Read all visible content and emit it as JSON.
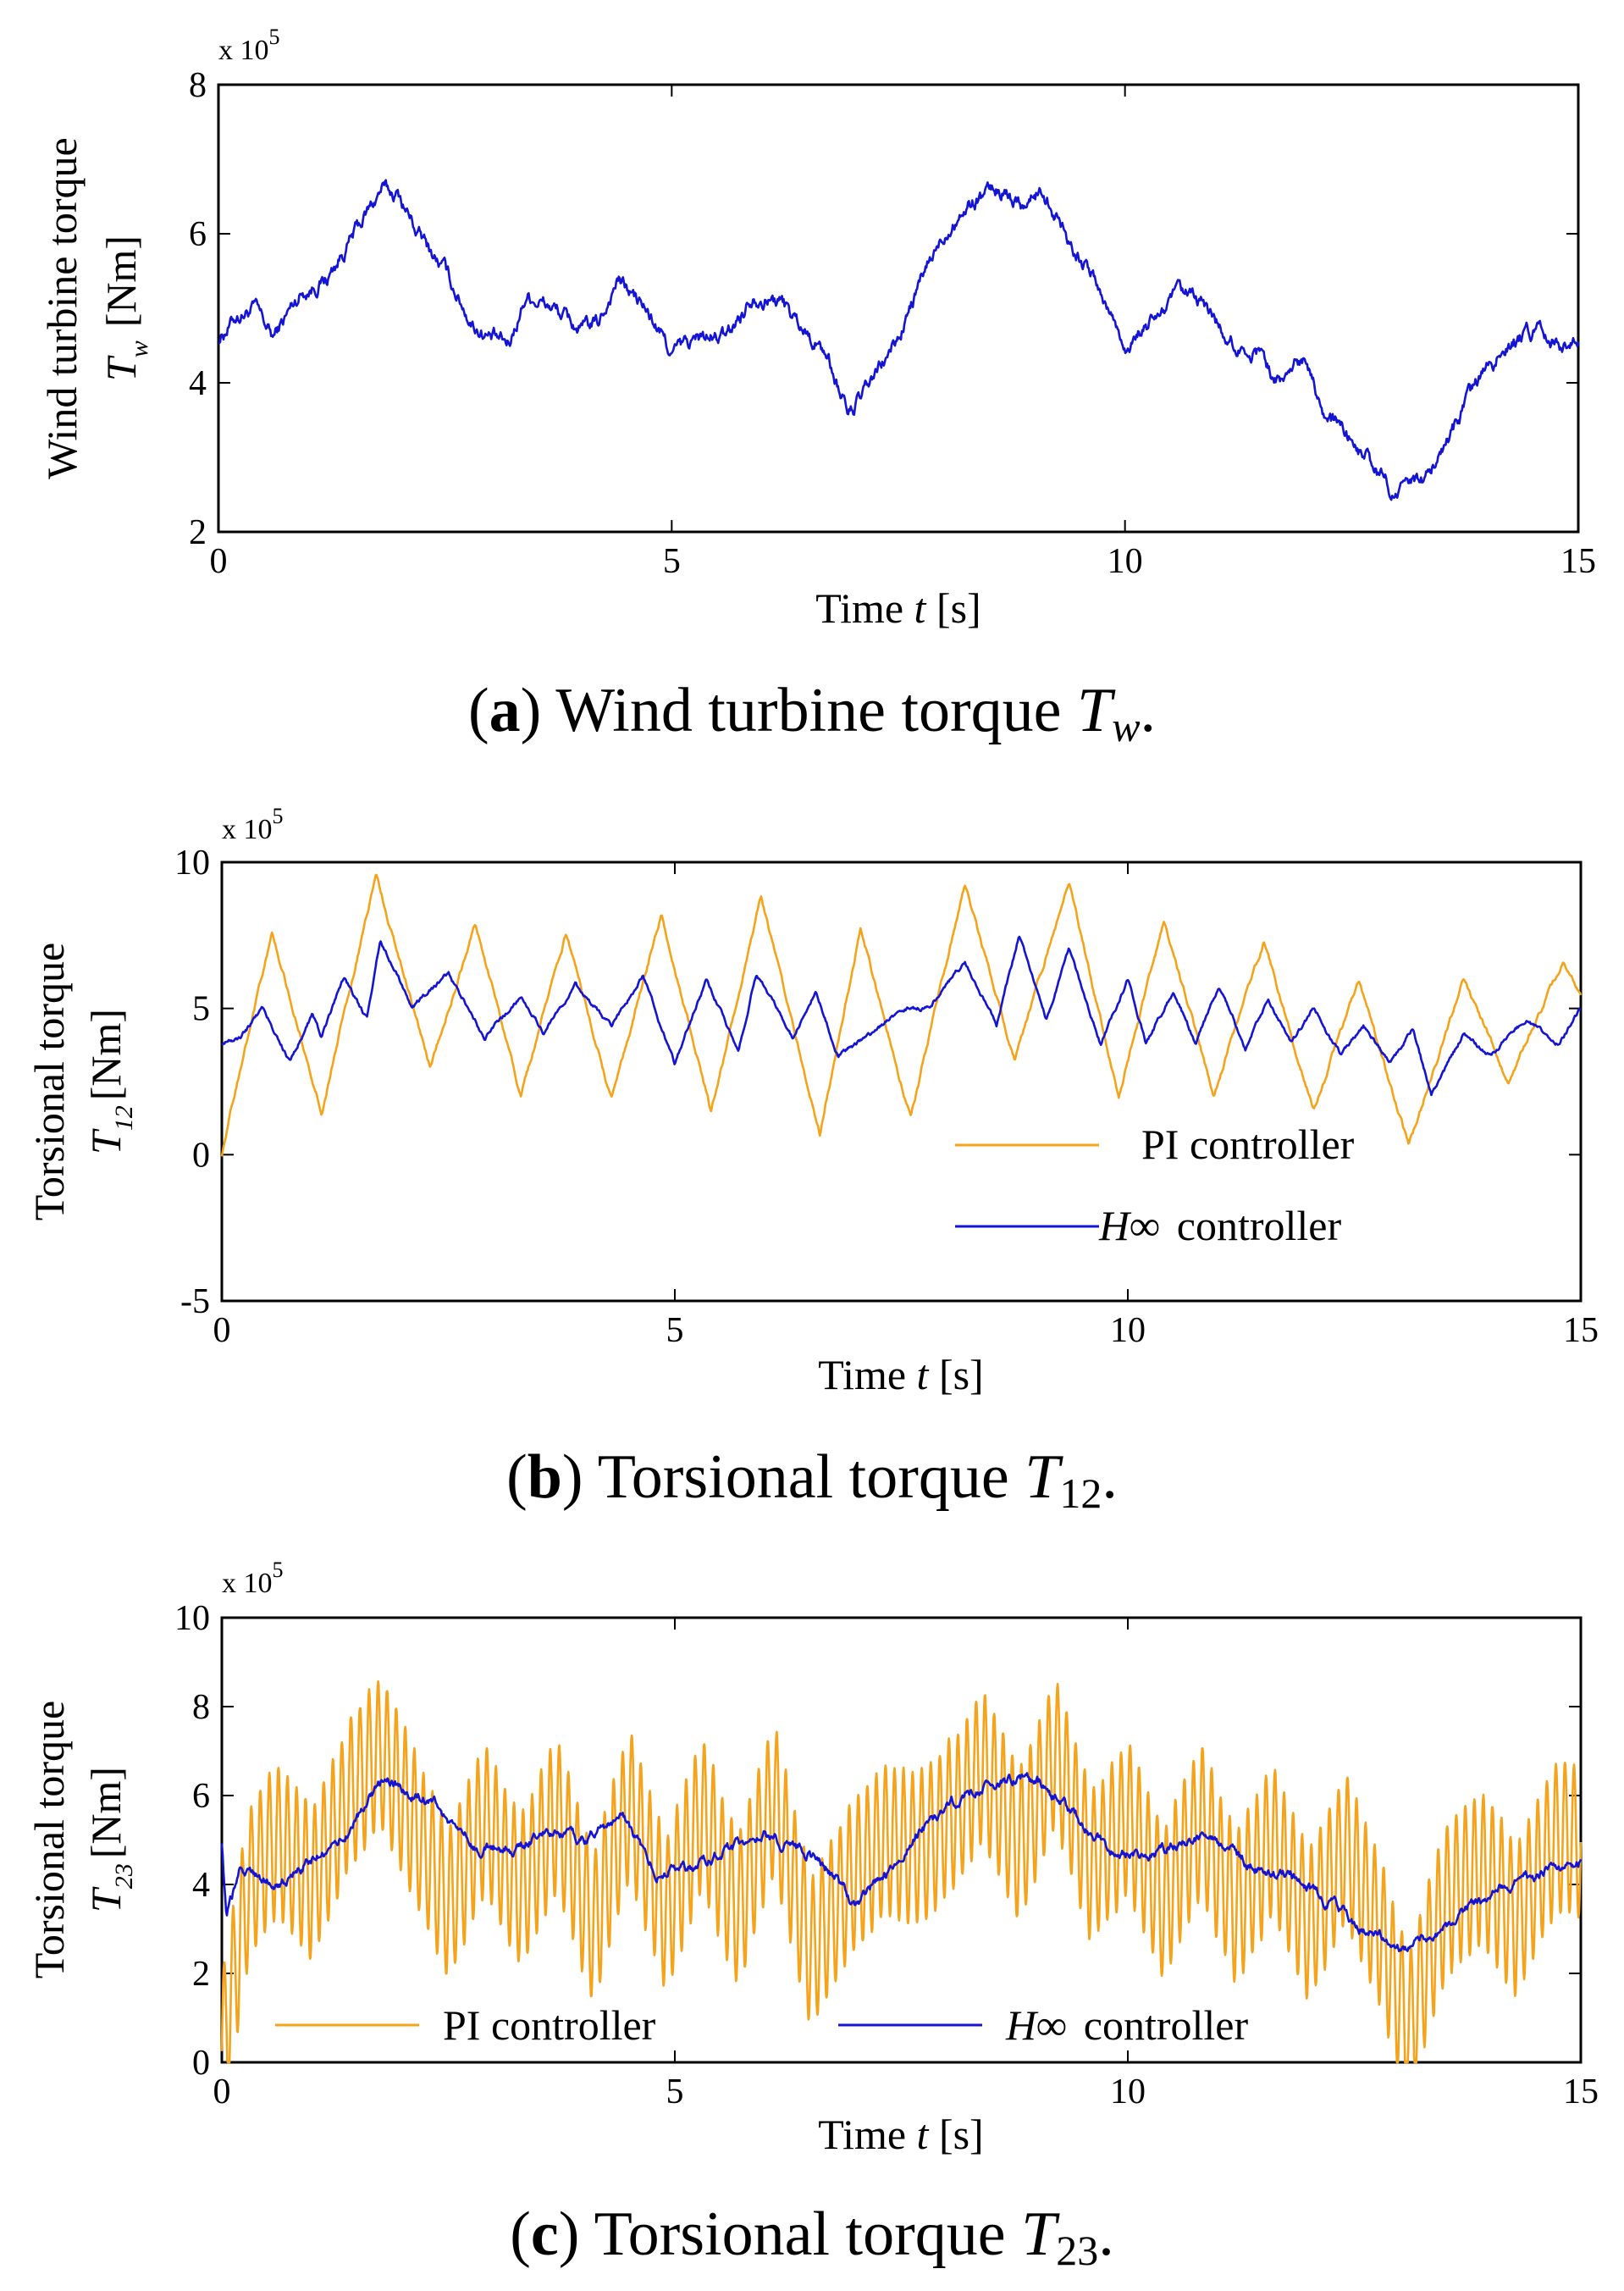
{
  "chart_data": [
    {
      "type": "line",
      "caption": {
        "label": "a",
        "text": "Wind turbine torque",
        "symbol": "T",
        "sub": "w"
      },
      "xlabel": {
        "text": "Time",
        "var": "t",
        "unit": "[s]"
      },
      "ylabel": {
        "line1": "Wind turbine torque",
        "symbol": "T",
        "sub": "w",
        "unit": "[Nm]"
      },
      "exponent": {
        "base": "x 10",
        "power": "5"
      },
      "xlim": [
        0,
        15
      ],
      "ylim": [
        2,
        8
      ],
      "xticks": [
        0,
        5,
        10,
        15
      ],
      "yticks": [
        2,
        4,
        6,
        8
      ],
      "series": [
        {
          "name": "Wind turbine torque",
          "color": "#1414d4",
          "jitter": 0.07,
          "oscillation": null,
          "points": [
            [
              0,
              4.6
            ],
            [
              0.2,
              4.9
            ],
            [
              0.4,
              5.0
            ],
            [
              0.6,
              4.6
            ],
            [
              0.9,
              5.2
            ],
            [
              1.2,
              5.4
            ],
            [
              1.5,
              6.0
            ],
            [
              1.8,
              6.6
            ],
            [
              2.0,
              6.5
            ],
            [
              2.2,
              6.0
            ],
            [
              2.5,
              5.5
            ],
            [
              2.8,
              4.8
            ],
            [
              3.0,
              4.6
            ],
            [
              3.2,
              4.5
            ],
            [
              3.4,
              5.2
            ],
            [
              3.7,
              5.0
            ],
            [
              4.0,
              4.7
            ],
            [
              4.2,
              4.8
            ],
            [
              4.4,
              5.4
            ],
            [
              4.7,
              5.0
            ],
            [
              5.0,
              4.4
            ],
            [
              5.3,
              4.6
            ],
            [
              5.6,
              4.6
            ],
            [
              5.9,
              5.2
            ],
            [
              6.2,
              5.1
            ],
            [
              6.4,
              4.8
            ],
            [
              6.7,
              4.4
            ],
            [
              6.95,
              3.6
            ],
            [
              7.1,
              3.8
            ],
            [
              7.5,
              4.6
            ],
            [
              7.8,
              5.5
            ],
            [
              8.1,
              6.2
            ],
            [
              8.4,
              6.5
            ],
            [
              8.6,
              6.6
            ],
            [
              8.9,
              6.4
            ],
            [
              9.1,
              6.6
            ],
            [
              9.4,
              5.9
            ],
            [
              9.7,
              5.3
            ],
            [
              10.0,
              4.5
            ],
            [
              10.3,
              4.8
            ],
            [
              10.6,
              5.2
            ],
            [
              10.9,
              5.0
            ],
            [
              11.2,
              4.5
            ],
            [
              11.5,
              4.4
            ],
            [
              11.7,
              4.0
            ],
            [
              12.0,
              4.4
            ],
            [
              12.2,
              3.6
            ],
            [
              12.5,
              3.2
            ],
            [
              12.8,
              2.8
            ],
            [
              13.0,
              2.5
            ],
            [
              13.3,
              2.7
            ],
            [
              13.6,
              3.3
            ],
            [
              13.9,
              4.0
            ],
            [
              14.2,
              4.5
            ],
            [
              14.5,
              4.7
            ],
            [
              14.8,
              4.5
            ],
            [
              15.0,
              4.7
            ]
          ]
        }
      ]
    },
    {
      "type": "line",
      "caption": {
        "label": "b",
        "text": "Torsional torque",
        "symbol": "T",
        "sub": "12"
      },
      "xlabel": {
        "text": "Time",
        "var": "t",
        "unit": "[s]"
      },
      "ylabel": {
        "line1": "Torsional torque",
        "symbol": "T",
        "sub": "12",
        "unit": "[Nm]"
      },
      "exponent": {
        "base": "x 10",
        "power": "5"
      },
      "xlim": [
        0,
        15
      ],
      "ylim": [
        -5,
        10
      ],
      "xticks": [
        0,
        5,
        10,
        15
      ],
      "yticks": [
        -5,
        0,
        5,
        10
      ],
      "legend": {
        "position": "lower-right",
        "entries": [
          {
            "name": "PI controller",
            "prefix": "",
            "suffix": "PI controller",
            "color": "#f5a31a"
          },
          {
            "name": "H∞ controller",
            "prefix": "H∞",
            "suffix": "controller",
            "color": "#1414d4"
          }
        ]
      },
      "series": [
        {
          "name": "PI controller",
          "color": "#f5a31a",
          "jitter": 0.06,
          "oscillation": null,
          "points": [
            [
              0,
              0.0
            ],
            [
              0.1,
              1.5
            ],
            [
              0.55,
              7.6
            ],
            [
              1.1,
              1.5
            ],
            [
              1.7,
              9.5
            ],
            [
              2.3,
              3.0
            ],
            [
              2.8,
              7.9
            ],
            [
              3.3,
              2.0
            ],
            [
              3.8,
              7.6
            ],
            [
              4.3,
              1.9
            ],
            [
              4.85,
              8.2
            ],
            [
              5.4,
              1.4
            ],
            [
              5.95,
              8.8
            ],
            [
              6.6,
              0.7
            ],
            [
              7.05,
              7.7
            ],
            [
              7.6,
              1.3
            ],
            [
              8.2,
              9.2
            ],
            [
              8.75,
              3.3
            ],
            [
              9.35,
              9.3
            ],
            [
              9.9,
              2.0
            ],
            [
              10.4,
              8.0
            ],
            [
              10.95,
              2.1
            ],
            [
              11.5,
              7.3
            ],
            [
              12.05,
              1.5
            ],
            [
              12.55,
              6.0
            ],
            [
              13.1,
              0.3
            ],
            [
              13.7,
              6.0
            ],
            [
              14.2,
              2.5
            ],
            [
              14.8,
              6.6
            ],
            [
              15.0,
              5.5
            ]
          ]
        },
        {
          "name": "H∞ controller",
          "color": "#1414d4",
          "jitter": 0.05,
          "oscillation": null,
          "points": [
            [
              0,
              3.8
            ],
            [
              0.2,
              4.0
            ],
            [
              0.45,
              5.0
            ],
            [
              0.75,
              3.2
            ],
            [
              1.0,
              4.8
            ],
            [
              1.1,
              4.0
            ],
            [
              1.35,
              6.1
            ],
            [
              1.6,
              4.6
            ],
            [
              1.75,
              7.4
            ],
            [
              2.1,
              5.0
            ],
            [
              2.5,
              6.2
            ],
            [
              2.9,
              4.0
            ],
            [
              3.3,
              5.4
            ],
            [
              3.55,
              4.2
            ],
            [
              3.9,
              5.8
            ],
            [
              4.3,
              4.4
            ],
            [
              4.65,
              6.1
            ],
            [
              5.0,
              3.1
            ],
            [
              5.35,
              6.0
            ],
            [
              5.7,
              3.5
            ],
            [
              5.9,
              6.2
            ],
            [
              6.3,
              4.0
            ],
            [
              6.55,
              5.6
            ],
            [
              6.8,
              3.4
            ],
            [
              7.2,
              4.2
            ],
            [
              7.5,
              5.0
            ],
            [
              7.8,
              5.0
            ],
            [
              8.2,
              6.6
            ],
            [
              8.55,
              4.4
            ],
            [
              8.8,
              7.5
            ],
            [
              9.1,
              4.6
            ],
            [
              9.35,
              7.0
            ],
            [
              9.7,
              3.8
            ],
            [
              10.0,
              6.0
            ],
            [
              10.2,
              3.8
            ],
            [
              10.5,
              5.6
            ],
            [
              10.75,
              3.8
            ],
            [
              11.0,
              5.8
            ],
            [
              11.3,
              3.6
            ],
            [
              11.55,
              5.4
            ],
            [
              11.8,
              3.8
            ],
            [
              12.05,
              5.0
            ],
            [
              12.35,
              3.4
            ],
            [
              12.6,
              4.4
            ],
            [
              12.9,
              3.2
            ],
            [
              13.15,
              4.3
            ],
            [
              13.35,
              2.0
            ],
            [
              13.7,
              4.1
            ],
            [
              14.0,
              3.4
            ],
            [
              14.4,
              4.6
            ],
            [
              14.75,
              3.8
            ],
            [
              15.0,
              5.0
            ]
          ]
        }
      ]
    },
    {
      "type": "line",
      "caption": {
        "label": "c",
        "text": "Torsional torque",
        "symbol": "T",
        "sub": "23"
      },
      "xlabel": {
        "text": "Time",
        "var": "t",
        "unit": "[s]"
      },
      "ylabel": {
        "line1": "Torsional torque",
        "symbol": "T",
        "sub": "23",
        "unit": "[Nm]"
      },
      "exponent": {
        "base": "x 10",
        "power": "5"
      },
      "xlim": [
        0,
        15
      ],
      "ylim": [
        0,
        10
      ],
      "xticks": [
        0,
        5,
        10,
        15
      ],
      "yticks": [
        0,
        2,
        4,
        6,
        8,
        10
      ],
      "legend": {
        "position": "bottom",
        "entries": [
          {
            "name": "PI controller",
            "prefix": "",
            "suffix": "PI controller",
            "color": "#f5a31a"
          },
          {
            "name": "H∞ controller",
            "prefix": "H∞",
            "suffix": "controller",
            "color": "#1414d4"
          }
        ]
      },
      "series": [
        {
          "name": "PI controller",
          "color": "#f5a31a",
          "jitter": 0.05,
          "oscillation": {
            "period": 0.1,
            "amplitude": 1.7
          },
          "points": [
            [
              0,
              0.3
            ],
            [
              0.3,
              4.0
            ],
            [
              0.6,
              5.0
            ],
            [
              1.0,
              4.0
            ],
            [
              1.4,
              6.0
            ],
            [
              1.75,
              7.0
            ],
            [
              2.1,
              5.5
            ],
            [
              2.5,
              3.5
            ],
            [
              2.9,
              5.5
            ],
            [
              3.3,
              3.8
            ],
            [
              3.7,
              5.6
            ],
            [
              4.1,
              3.0
            ],
            [
              4.5,
              5.8
            ],
            [
              4.9,
              3.3
            ],
            [
              5.3,
              5.6
            ],
            [
              5.7,
              3.4
            ],
            [
              6.1,
              6.0
            ],
            [
              6.5,
              2.4
            ],
            [
              6.9,
              4.0
            ],
            [
              7.3,
              5.0
            ],
            [
              7.7,
              4.8
            ],
            [
              8.1,
              5.6
            ],
            [
              8.4,
              6.7
            ],
            [
              8.8,
              4.8
            ],
            [
              9.2,
              7.0
            ],
            [
              9.6,
              4.4
            ],
            [
              10.0,
              5.5
            ],
            [
              10.4,
              3.5
            ],
            [
              10.8,
              5.5
            ],
            [
              11.2,
              3.4
            ],
            [
              11.6,
              5.0
            ],
            [
              12.0,
              3.0
            ],
            [
              12.4,
              4.8
            ],
            [
              12.8,
              2.8
            ],
            [
              13.1,
              0.8
            ],
            [
              13.5,
              3.6
            ],
            [
              13.9,
              4.4
            ],
            [
              14.3,
              3.2
            ],
            [
              14.7,
              5.0
            ],
            [
              15.0,
              5.0
            ]
          ]
        },
        {
          "name": "H∞ controller",
          "color": "#1414d4",
          "jitter": 0.08,
          "oscillation": null,
          "points": [
            [
              0,
              5.0
            ],
            [
              0.05,
              3.3
            ],
            [
              0.2,
              4.3
            ],
            [
              0.6,
              4.0
            ],
            [
              1.0,
              4.6
            ],
            [
              1.4,
              5.2
            ],
            [
              1.8,
              6.5
            ],
            [
              2.0,
              6.1
            ],
            [
              2.4,
              5.8
            ],
            [
              2.8,
              4.8
            ],
            [
              3.2,
              4.8
            ],
            [
              3.6,
              5.2
            ],
            [
              4.0,
              5.0
            ],
            [
              4.4,
              5.6
            ],
            [
              4.8,
              4.3
            ],
            [
              5.2,
              4.4
            ],
            [
              5.6,
              4.8
            ],
            [
              6.0,
              5.1
            ],
            [
              6.4,
              4.8
            ],
            [
              6.8,
              4.1
            ],
            [
              7.0,
              3.5
            ],
            [
              7.4,
              4.4
            ],
            [
              7.8,
              5.4
            ],
            [
              8.2,
              6.0
            ],
            [
              8.6,
              6.3
            ],
            [
              9.0,
              6.3
            ],
            [
              9.4,
              5.6
            ],
            [
              9.8,
              4.8
            ],
            [
              10.2,
              4.6
            ],
            [
              10.6,
              5.0
            ],
            [
              11.0,
              4.9
            ],
            [
              11.4,
              4.4
            ],
            [
              11.8,
              4.2
            ],
            [
              12.2,
              3.6
            ],
            [
              12.6,
              3.0
            ],
            [
              13.0,
              2.6
            ],
            [
              13.4,
              2.8
            ],
            [
              13.8,
              3.6
            ],
            [
              14.2,
              4.0
            ],
            [
              14.6,
              4.3
            ],
            [
              15.0,
              4.5
            ]
          ]
        }
      ]
    }
  ]
}
